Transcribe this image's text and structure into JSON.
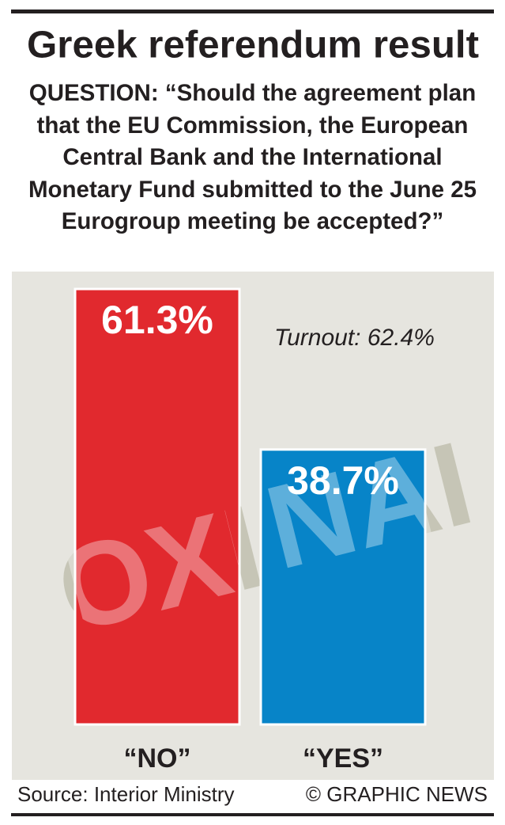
{
  "chart_data": {
    "type": "bar",
    "title": "Greek referendum result",
    "subtitle": "QUESTION: “Should the agreement plan that the EU Commission, the European Central Bank and the International Monetary Fund submitted to the June 25 Eurogroup meeting be accepted?”",
    "categories": [
      "“NO”",
      "“YES”"
    ],
    "values": [
      61.3,
      38.7
    ],
    "value_labels": [
      "61.3%",
      "38.7%"
    ],
    "colors": [
      "#e1292e",
      "#0784c8"
    ],
    "watermarks": [
      "OXI",
      "NAI"
    ],
    "annotation": "Turnout: 62.4%",
    "source": "Source: Interior Ministry",
    "credit": "© GRAPHIC NEWS"
  }
}
